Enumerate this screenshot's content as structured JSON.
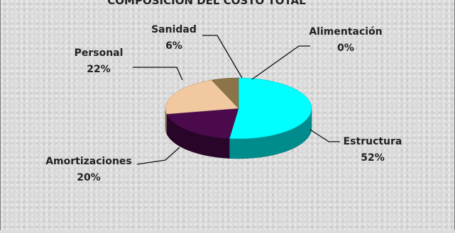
{
  "chart_data": {
    "type": "pie",
    "title": "COMPOSICIÓN DEL COSTO TOTAL",
    "slices": [
      {
        "label": "Estructura",
        "value": 52,
        "percent_label": "52%",
        "color": "#00FFFF"
      },
      {
        "label": "Amortizaciones",
        "value": 20,
        "percent_label": "20%",
        "color": "#4B0A4B"
      },
      {
        "label": "Personal",
        "value": 22,
        "percent_label": "22%",
        "color": "#F2C8A0"
      },
      {
        "label": "Sanidad",
        "value": 6,
        "percent_label": "6%",
        "color": "#8C7448"
      },
      {
        "label": "Alimentación",
        "value": 0,
        "percent_label": "0%",
        "color": "#000000"
      }
    ],
    "three_d": true,
    "legend": "none"
  }
}
